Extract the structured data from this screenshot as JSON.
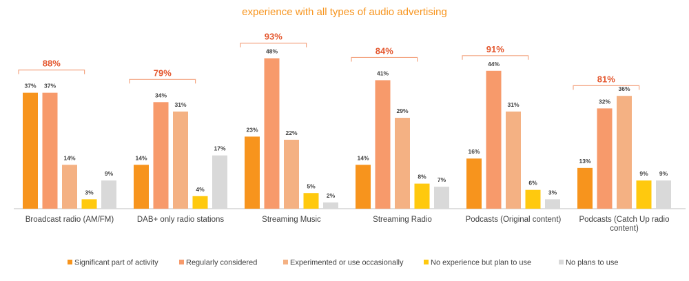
{
  "chart_data": {
    "type": "bar",
    "title": "experience with all types of audio advertising",
    "xlabel": "",
    "ylabel": "",
    "ylim": [
      0,
      50
    ],
    "grid": false,
    "legend_position": "bottom",
    "categories": [
      [
        "Broadcast radio (AM/FM)"
      ],
      [
        "DAB+ only radio stations"
      ],
      [
        "Streaming Music"
      ],
      [
        "Streaming Radio"
      ],
      [
        "Podcasts (Original content)"
      ],
      [
        "Podcasts (Catch Up radio",
        "content)"
      ]
    ],
    "totals": [
      "88%",
      "79%",
      "93%",
      "84%",
      "91%",
      "81%"
    ],
    "series": [
      {
        "name": "Significant part of activity",
        "color": "#F7941D",
        "values": [
          37,
          14,
          23,
          14,
          16,
          13
        ]
      },
      {
        "name": "Regularly considered",
        "color": "#F79A6B",
        "values": [
          37,
          34,
          48,
          41,
          44,
          32
        ]
      },
      {
        "name": "Experimented or use occasionally",
        "color": "#F4B183",
        "values": [
          14,
          31,
          22,
          29,
          31,
          36
        ]
      },
      {
        "name": "No experience but plan to use",
        "color": "#FFC90E",
        "values": [
          3,
          4,
          5,
          8,
          6,
          9
        ]
      },
      {
        "name": "No plans to use",
        "color": "#D9D9D9",
        "values": [
          9,
          17,
          2,
          7,
          3,
          9
        ]
      }
    ],
    "colors": {
      "title": "#F7941D",
      "total_label": "#E4572E",
      "bracket": "#F4A582",
      "axis": "#BFBFBF",
      "text": "#404040"
    }
  }
}
